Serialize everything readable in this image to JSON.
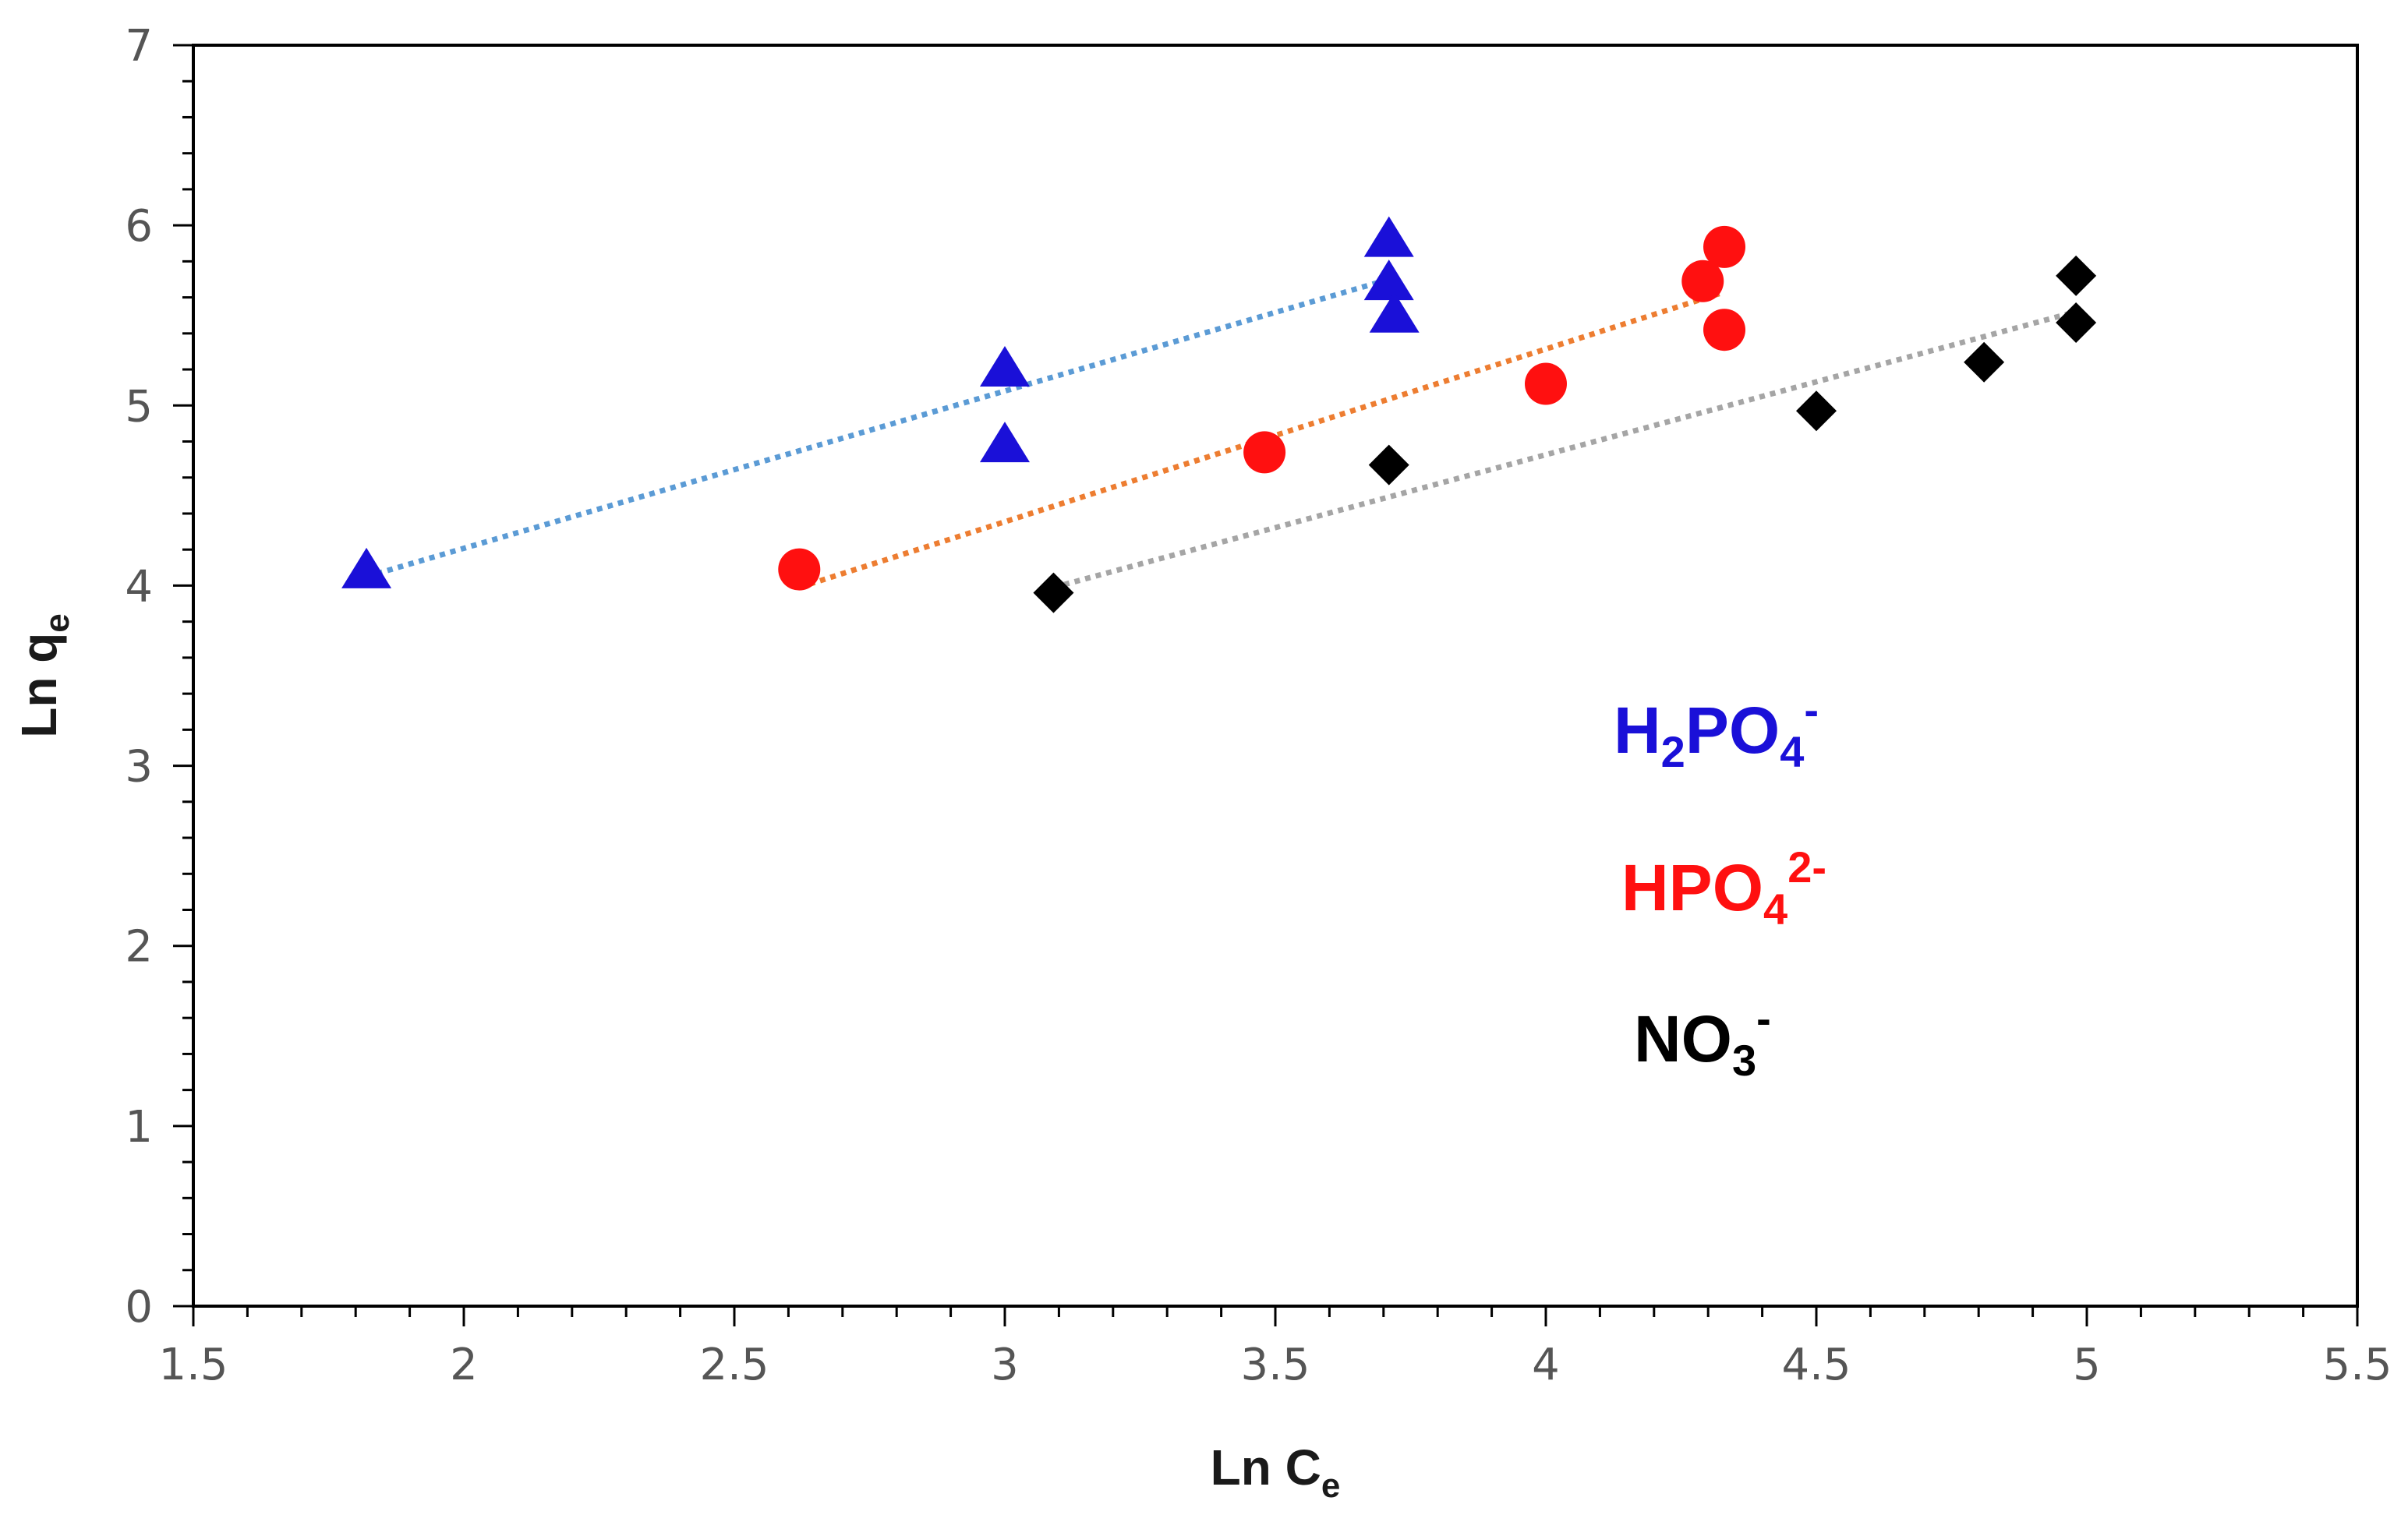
{
  "chart_data": {
    "type": "scatter",
    "title": "",
    "xlabel": {
      "main": "Ln C",
      "sub": "e"
    },
    "ylabel": {
      "main": "Ln q",
      "sub": "e"
    },
    "xlim": [
      1.5,
      5.5
    ],
    "ylim": [
      0,
      7
    ],
    "x_ticks": [
      "1.5",
      "2",
      "2.5",
      "3",
      "3.5",
      "4",
      "4.5",
      "5",
      "5.5"
    ],
    "x_tick_values": [
      1.5,
      2,
      2.5,
      3,
      3.5,
      4,
      4.5,
      5,
      5.5
    ],
    "y_ticks": [
      "0",
      "1",
      "2",
      "3",
      "4",
      "5",
      "6",
      "7"
    ],
    "y_tick_values": [
      0,
      1,
      2,
      3,
      4,
      5,
      6,
      7
    ],
    "minor_ticks_per_major": 5,
    "grid": false,
    "series": [
      {
        "name": "H2PO4-",
        "marker": "triangle",
        "color": "#1a10d8",
        "trendline_color": "#5b9bd5",
        "points": [
          {
            "x": 1.82,
            "y": 4.08
          },
          {
            "x": 3.0,
            "y": 5.2
          },
          {
            "x": 3.0,
            "y": 4.78
          },
          {
            "x": 3.71,
            "y": 5.92
          },
          {
            "x": 3.71,
            "y": 5.68
          },
          {
            "x": 3.72,
            "y": 5.5
          }
        ],
        "trendline": [
          {
            "x": 1.82,
            "y": 4.05
          },
          {
            "x": 3.71,
            "y": 5.7
          }
        ]
      },
      {
        "name": "HPO42-",
        "marker": "circle",
        "color": "#ff1010",
        "trendline_color": "#ed7d31",
        "points": [
          {
            "x": 2.62,
            "y": 4.09
          },
          {
            "x": 3.48,
            "y": 4.74
          },
          {
            "x": 4.0,
            "y": 5.12
          },
          {
            "x": 4.29,
            "y": 5.69
          },
          {
            "x": 4.33,
            "y": 5.88
          },
          {
            "x": 4.33,
            "y": 5.42
          }
        ],
        "trendline": [
          {
            "x": 2.62,
            "y": 3.99
          },
          {
            "x": 4.33,
            "y": 5.63
          }
        ]
      },
      {
        "name": "NO3-",
        "marker": "diamond",
        "color": "#000000",
        "trendline_color": "#a5a5a5",
        "points": [
          {
            "x": 3.09,
            "y": 3.96
          },
          {
            "x": 3.71,
            "y": 4.67
          },
          {
            "x": 4.5,
            "y": 4.97
          },
          {
            "x": 4.81,
            "y": 5.24
          },
          {
            "x": 4.98,
            "y": 5.72
          },
          {
            "x": 4.98,
            "y": 5.46
          }
        ],
        "trendline": [
          {
            "x": 3.09,
            "y": 3.99
          },
          {
            "x": 4.98,
            "y": 5.52
          }
        ]
      }
    ],
    "legend": [
      {
        "base": "H",
        "sub1": "2",
        "mid": "PO",
        "sub2": "4",
        "sup": "-",
        "color": "#1a10d8"
      },
      {
        "base": "HPO",
        "sub1": "4",
        "mid": "",
        "sub2": "",
        "sup": "2-",
        "color": "#ff1010"
      },
      {
        "base": "NO",
        "sub1": "3",
        "mid": "",
        "sub2": "",
        "sup": "-",
        "color": "#000000"
      }
    ],
    "legend_placement": "right-center"
  }
}
